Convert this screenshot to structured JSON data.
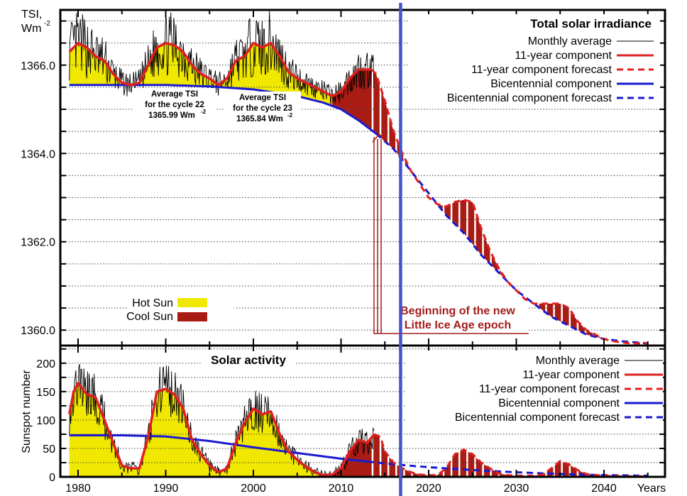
{
  "chart_data": [
    {
      "type": "line",
      "title": "Total solar irradiance",
      "ylabel": "TSI, Wm-2",
      "ylabel_lines": [
        "TSI,",
        "Wm",
        "-2"
      ],
      "ylim": [
        1359.65,
        1367.25
      ],
      "xlim": [
        1978,
        2046
      ],
      "yticks": [
        1360.0,
        1362.0,
        1364.0,
        1366.0
      ],
      "ytick_labels": [
        "1360.0",
        "1362.0",
        "1364.0",
        "1366.0"
      ],
      "minor_grid_step": 0.5,
      "grid": true,
      "legend_placement": "top-right",
      "legend": [
        {
          "label": "Monthly average",
          "color": "#000000",
          "style": "thin-solid"
        },
        {
          "label": "11-year component",
          "color": "#e02020",
          "style": "solid"
        },
        {
          "label": "11-year component forecast",
          "color": "#e02020",
          "style": "dashed"
        },
        {
          "label": "Bicentennial component",
          "color": "#1a1ad0",
          "style": "solid"
        },
        {
          "label": "Bicentennial component forecast",
          "color": "#1a1ad0",
          "style": "dashed"
        }
      ],
      "series": [
        {
          "name": "11-year component",
          "x": [
            1979,
            1980,
            1981,
            1982,
            1983,
            1984,
            1985,
            1986,
            1987,
            1988,
            1989,
            1990,
            1991,
            1992,
            1993,
            1994,
            1995,
            1996,
            1997,
            1998,
            1999,
            2000,
            2001,
            2002,
            2003,
            2004,
            2005,
            2006,
            2007,
            2008,
            2009,
            2010,
            2011,
            2012,
            2013.5
          ],
          "y": [
            1366.3,
            1366.5,
            1366.4,
            1366.2,
            1366.1,
            1365.8,
            1365.6,
            1365.55,
            1365.6,
            1366.0,
            1366.4,
            1366.5,
            1366.45,
            1366.3,
            1366.0,
            1365.8,
            1365.7,
            1365.55,
            1365.7,
            1366.1,
            1366.2,
            1366.5,
            1366.4,
            1366.5,
            1366.2,
            1365.85,
            1365.7,
            1365.6,
            1365.5,
            1365.4,
            1365.3,
            1365.4,
            1365.7,
            1365.9,
            1365.9
          ]
        },
        {
          "name": "11-year component forecast",
          "x": [
            2013.5,
            2014,
            2015,
            2016,
            2017,
            2018,
            2019,
            2020,
            2021,
            2022,
            2023,
            2024,
            2025,
            2026,
            2027,
            2028,
            2029,
            2030,
            2031,
            2032,
            2033,
            2034,
            2035,
            2036,
            2037,
            2038,
            2039,
            2040,
            2041,
            2042,
            2043,
            2045
          ],
          "y": [
            1365.9,
            1365.8,
            1365.2,
            1364.5,
            1364.0,
            1363.6,
            1363.3,
            1363.0,
            1362.85,
            1362.8,
            1362.9,
            1362.95,
            1362.9,
            1362.3,
            1361.8,
            1361.4,
            1361.1,
            1360.9,
            1360.7,
            1360.6,
            1360.6,
            1360.6,
            1360.6,
            1360.5,
            1360.2,
            1360.0,
            1359.9,
            1359.8,
            1359.75,
            1359.72,
            1359.7,
            1359.7
          ]
        },
        {
          "name": "Bicentennial component",
          "x": [
            1979,
            1985,
            1990,
            1995,
            2000,
            2005,
            2008,
            2010,
            2012,
            2014
          ],
          "y": [
            1365.55,
            1365.55,
            1365.55,
            1365.52,
            1365.45,
            1365.3,
            1365.15,
            1365.0,
            1364.75,
            1364.45
          ]
        },
        {
          "name": "Bicentennial component forecast",
          "x": [
            2014,
            2016,
            2018,
            2020,
            2022,
            2024,
            2026,
            2028,
            2030,
            2032,
            2034,
            2036,
            2038,
            2040,
            2042,
            2045
          ],
          "y": [
            1364.45,
            1364.1,
            1363.6,
            1363.1,
            1362.6,
            1362.2,
            1361.7,
            1361.3,
            1360.9,
            1360.6,
            1360.3,
            1360.1,
            1359.9,
            1359.8,
            1359.75,
            1359.7
          ]
        }
      ],
      "annotations": [
        {
          "lines": [
            "Average TSI",
            "for the cycle 22",
            "1365.99 Wm",
            "-2"
          ]
        },
        {
          "lines": [
            "Average TSI",
            "for the cycle 23",
            "1365.84 Wm",
            "-2"
          ]
        },
        {
          "lines": [
            "Beginning of the new",
            "Little Ice Age epoch"
          ],
          "color": "#a31c1c"
        }
      ],
      "fill_legend": [
        {
          "label": "Hot Sun",
          "color": "#f0e800"
        },
        {
          "label": "Cool Sun",
          "color": "#a81c14"
        }
      ]
    },
    {
      "type": "line",
      "title": "Solar activity",
      "ylabel": "Sunspot number",
      "xlabel": "Years",
      "ylim": [
        0,
        231
      ],
      "xlim": [
        1978,
        2046
      ],
      "yticks": [
        0,
        50,
        100,
        150,
        200
      ],
      "ytick_labels": [
        "0",
        "50",
        "100",
        "150",
        "200"
      ],
      "xticks": [
        1980,
        1990,
        2000,
        2010,
        2020,
        2030,
        2040
      ],
      "xtick_labels": [
        "1980",
        "1990",
        "2000",
        "2010",
        "2020",
        "2030",
        "2040"
      ],
      "minor_grid_step": 25,
      "grid": true,
      "legend_placement": "top-right",
      "legend": [
        {
          "label": "Monthly average",
          "color": "#000000",
          "style": "thin-solid"
        },
        {
          "label": "11-year component",
          "color": "#e02020",
          "style": "solid"
        },
        {
          "label": "11-year component forecast",
          "color": "#e02020",
          "style": "dashed"
        },
        {
          "label": "Bicentennial component",
          "color": "#1a1ad0",
          "style": "solid"
        },
        {
          "label": "Bicentennial component forecast",
          "color": "#1a1ad0",
          "style": "dashed"
        }
      ],
      "series": [
        {
          "name": "11-year component",
          "x": [
            1979,
            1979.5,
            1980,
            1981,
            1982,
            1983,
            1984,
            1985,
            1986,
            1987,
            1988,
            1989,
            1990,
            1991,
            1992,
            1993,
            1994,
            1995,
            1996,
            1997,
            1998,
            1999,
            2000,
            2001,
            2002,
            2003,
            2004,
            2005,
            2006,
            2007,
            2008,
            2009,
            2010,
            2011,
            2012,
            2013,
            2013.8
          ],
          "y": [
            110,
            150,
            165,
            145,
            140,
            100,
            60,
            20,
            15,
            15,
            70,
            150,
            155,
            145,
            120,
            65,
            40,
            20,
            8,
            15,
            60,
            95,
            120,
            110,
            115,
            75,
            45,
            30,
            18,
            8,
            3,
            4,
            15,
            45,
            65,
            60,
            75
          ]
        },
        {
          "name": "11-year component forecast",
          "x": [
            2013.8,
            2014.5,
            2015,
            2016,
            2017,
            2018,
            2019,
            2020,
            2021,
            2022,
            2023,
            2024,
            2025,
            2026,
            2027,
            2028,
            2029,
            2030,
            2031,
            2032,
            2033,
            2034,
            2035,
            2036,
            2037,
            2038,
            2039,
            2040,
            2042,
            2045
          ],
          "y": [
            75,
            70,
            45,
            25,
            15,
            8,
            4,
            3,
            3,
            15,
            40,
            48,
            40,
            25,
            15,
            6,
            3,
            2,
            2,
            2,
            4,
            15,
            28,
            22,
            12,
            5,
            3,
            2,
            1,
            1
          ]
        },
        {
          "name": "Bicentennial component",
          "x": [
            1979,
            1985,
            1990,
            1995,
            2000,
            2005,
            2010,
            2013
          ],
          "y": [
            73,
            73,
            71,
            63,
            52,
            42,
            32,
            27
          ]
        },
        {
          "name": "Bicentennial component forecast",
          "x": [
            2013,
            2016,
            2020,
            2025,
            2030,
            2035,
            2040,
            2045
          ],
          "y": [
            27,
            22,
            17,
            12,
            8,
            5,
            3,
            2
          ]
        }
      ]
    }
  ],
  "marker_line": {
    "year": 2016.8,
    "color": "#4455cc"
  },
  "colors": {
    "hot": "#f0e800",
    "cool": "#a81c14",
    "red": "#e02020",
    "blue": "#1a1ad0",
    "annotation": "#a31c1c"
  }
}
